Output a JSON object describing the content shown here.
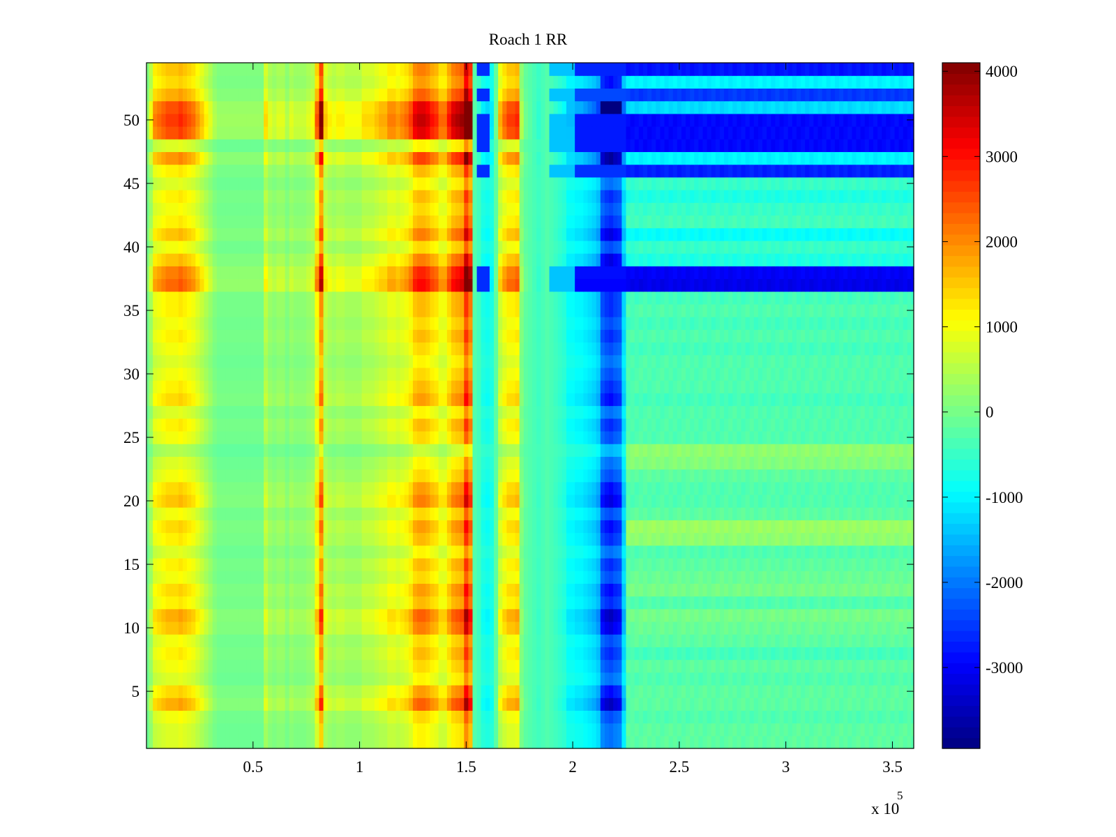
{
  "chart_data": {
    "type": "heatmap",
    "title": "Roach 1 RR",
    "xlabel": "",
    "ylabel": "",
    "x_exponent_label": "x 10",
    "x_exponent_power": "5",
    "xlim": [
      0,
      3.6
    ],
    "ylim": [
      0.5,
      54.5
    ],
    "x_ticks": [
      0.5,
      1,
      1.5,
      2,
      2.5,
      3,
      3.5
    ],
    "x_tick_labels": [
      "0.5",
      "1",
      "1.5",
      "2",
      "2.5",
      "3",
      "3.5"
    ],
    "y_ticks": [
      5,
      10,
      15,
      20,
      25,
      30,
      35,
      40,
      45,
      50
    ],
    "y_tick_labels": [
      "5",
      "10",
      "15",
      "20",
      "25",
      "30",
      "35",
      "40",
      "45",
      "50"
    ],
    "colormap": "jet",
    "colorbar": {
      "clim": [
        -3950,
        4100
      ],
      "ticks": [
        4000,
        3000,
        2000,
        1000,
        0,
        -1000,
        -2000,
        -3000
      ],
      "tick_labels": [
        "4000",
        "3000",
        "2000",
        "1000",
        "0",
        "-1000",
        "-2000",
        "-3000"
      ]
    },
    "rows": 54,
    "column_x": [
      0.005,
      0.02,
      0.04,
      0.06,
      0.08,
      0.1,
      0.12,
      0.14,
      0.16,
      0.18,
      0.2,
      0.22,
      0.24,
      0.26,
      0.28,
      0.3,
      0.32,
      0.34,
      0.36,
      0.38,
      0.4,
      0.42,
      0.44,
      0.46,
      0.48,
      0.5,
      0.52,
      0.54,
      0.56,
      0.58,
      0.6,
      0.62,
      0.64,
      0.66,
      0.68,
      0.7,
      0.72,
      0.74,
      0.76,
      0.78,
      0.8,
      0.82,
      0.84,
      0.86,
      0.88,
      0.9,
      0.92,
      0.94,
      0.96,
      0.98,
      1.0,
      1.02,
      1.04,
      1.06,
      1.08,
      1.1,
      1.12,
      1.14,
      1.16,
      1.18,
      1.2,
      1.22,
      1.24,
      1.26,
      1.28,
      1.3,
      1.32,
      1.34,
      1.36,
      1.38,
      1.4,
      1.42,
      1.44,
      1.46,
      1.48,
      1.5,
      1.52,
      1.54,
      1.56,
      1.58,
      1.6,
      1.62,
      1.64,
      1.66,
      1.68,
      1.7,
      1.72,
      1.74,
      1.76,
      1.78,
      1.8,
      1.82,
      1.84,
      1.86,
      1.88,
      1.9,
      1.92,
      1.94,
      1.96,
      1.98,
      2.0,
      2.02,
      2.04,
      2.06,
      2.08,
      2.1,
      2.12,
      2.14,
      2.16,
      2.18,
      2.2,
      2.22,
      2.24,
      2.26,
      2.28,
      2.3,
      2.32,
      2.34,
      2.36,
      2.38,
      2.4,
      2.42,
      2.44,
      2.46,
      2.48,
      2.5,
      2.52,
      2.54,
      2.56,
      2.58,
      2.6,
      2.62,
      2.64,
      2.66,
      2.68,
      2.7,
      2.72,
      2.74,
      2.76,
      2.78,
      2.8,
      2.82,
      2.84,
      2.86,
      2.88,
      2.9,
      2.92,
      2.94,
      2.96,
      2.98,
      3.0,
      3.02,
      3.04,
      3.06,
      3.08,
      3.1,
      3.12,
      3.14,
      3.16,
      3.18,
      3.2,
      3.22,
      3.24,
      3.26,
      3.28,
      3.3,
      3.32,
      3.34,
      3.36,
      3.38,
      3.4,
      3.42,
      3.44,
      3.46,
      3.48,
      3.5,
      3.52,
      3.54,
      3.56,
      3.58,
      3.595
    ],
    "column_profile": [
      0,
      400,
      1000,
      1100,
      1200,
      1300,
      1300,
      1300,
      1400,
      1300,
      1200,
      1100,
      900,
      700,
      500,
      300,
      100,
      0,
      0,
      0,
      0,
      0,
      0,
      0,
      0,
      0,
      0,
      0,
      600,
      300,
      200,
      300,
      300,
      100,
      300,
      200,
      200,
      200,
      300,
      400,
      1200,
      2200,
      700,
      500,
      400,
      500,
      500,
      400,
      400,
      400,
      400,
      600,
      600,
      600,
      700,
      800,
      800,
      1000,
      1000,
      900,
      1000,
      1100,
      1300,
      1700,
      1800,
      1800,
      1700,
      1500,
      1400,
      1100,
      1100,
      1500,
      1800,
      1900,
      2000,
      3000,
      2400,
      -300,
      -500,
      -800,
      -900,
      -800,
      -200,
      800,
      1100,
      1300,
      1300,
      1400,
      100,
      -200,
      -300,
      -400,
      -500,
      -400,
      -300,
      -400,
      -500,
      -600,
      -700,
      -1000,
      -1000,
      -1100,
      -1100,
      -1200,
      -1300,
      -1400,
      -1600,
      -2600,
      -2800,
      -2900,
      -2700,
      -2600,
      -1400,
      -500,
      -200,
      -200,
      -200,
      -200,
      -300,
      -300,
      -300,
      -300,
      -300,
      -300,
      -300,
      -300,
      -300,
      -300,
      -300,
      -300,
      -300,
      -300,
      -300,
      -300,
      -300,
      -300,
      -300,
      -300,
      -300,
      -300,
      -300,
      -300,
      -300,
      -300,
      -300,
      -300,
      -300,
      -300,
      -300,
      -300,
      -300,
      -300,
      -300,
      -300,
      -300,
      -300,
      -300,
      -300,
      -300,
      -300,
      -300,
      -300,
      -300,
      -300,
      -300,
      -300,
      -300,
      -300,
      -300,
      -300,
      -300,
      -300,
      -300,
      -300,
      -300,
      -300,
      -300,
      -300
    ],
    "row_profile": [
      300,
      300,
      400,
      800,
      600,
      300,
      400,
      500,
      400,
      700,
      800,
      500,
      600,
      400,
      500,
      300,
      500,
      600,
      400,
      700,
      600,
      400,
      300,
      100,
      400,
      500,
      300,
      600,
      500,
      400,
      300,
      400,
      500,
      400,
      500,
      500,
      1100,
      1000,
      700,
      400,
      700,
      500,
      400,
      500,
      300,
      500,
      900,
      300,
      1200,
      1300,
      1200,
      800,
      600,
      700
    ],
    "right_row_value": [
      -200,
      -200,
      -300,
      -200,
      -200,
      -300,
      -200,
      -400,
      -200,
      -100,
      0,
      -300,
      0,
      -100,
      -200,
      -300,
      200,
      300,
      -200,
      -300,
      -300,
      -200,
      100,
      200,
      -300,
      -300,
      -300,
      -400,
      -300,
      -300,
      -300,
      -400,
      -300,
      -400,
      -300,
      -400,
      -3100,
      -3000,
      -700,
      -500,
      -900,
      -400,
      -500,
      -700,
      -500,
      -2700,
      -1000,
      -2900,
      -2900,
      -2900,
      -1200,
      -2500,
      -1000,
      -2800
    ]
  }
}
